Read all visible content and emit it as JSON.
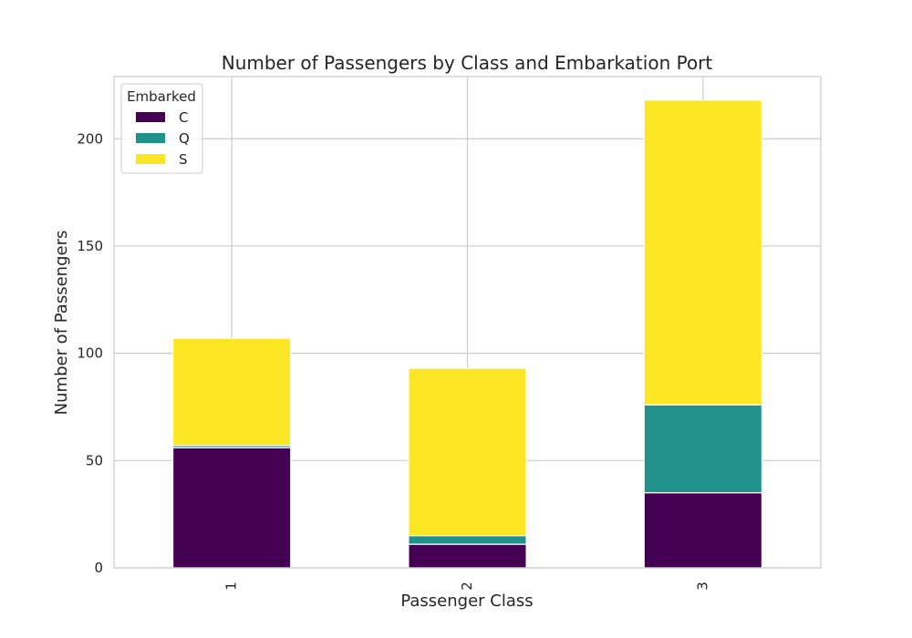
{
  "chart_data": {
    "type": "bar",
    "stacked": true,
    "title": "Number of Passengers by Class and Embarkation Port",
    "xlabel": "Passenger Class",
    "ylabel": "Number of Passengers",
    "categories": [
      "1",
      "2",
      "3"
    ],
    "series": [
      {
        "name": "C",
        "values": [
          56,
          11,
          35
        ],
        "color": "#440154"
      },
      {
        "name": "Q",
        "values": [
          1,
          4,
          41
        ],
        "color": "#21918c"
      },
      {
        "name": "S",
        "values": [
          50,
          78,
          142
        ],
        "color": "#fde725"
      }
    ],
    "ylim": [
      0,
      229
    ],
    "yticks": [
      0,
      50,
      100,
      150,
      200
    ],
    "grid": true,
    "legend": {
      "title": "Embarked",
      "placement": "top-left"
    }
  }
}
